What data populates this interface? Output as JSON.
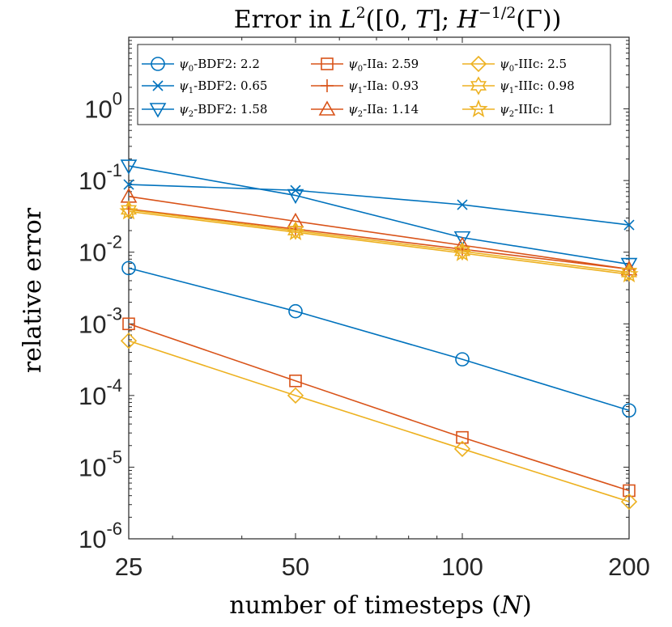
{
  "chart_data": {
    "type": "line",
    "title": "Error in L²([0,T]; H^{−1/2}(Γ))",
    "title_parts": {
      "pre": "Error in ",
      "L": "L",
      "sup2": "2",
      "args": "([0, ",
      "T": "T",
      "mid": "]; ",
      "H": "H",
      "supH": "−1/2",
      "gamma": "(Γ))"
    },
    "xlabel": "number of timesteps (N)",
    "xlabel_parts": {
      "pre": "number of timesteps (",
      "N": "N",
      "post": ")"
    },
    "ylabel": "relative error",
    "xscale": "log",
    "yscale": "log",
    "xlim": [
      25,
      200
    ],
    "ylim": [
      1e-06,
      10
    ],
    "x": [
      25,
      50,
      100,
      200
    ],
    "xtick_labels": [
      "25",
      "50",
      "100",
      "200"
    ],
    "ytick_labels": [
      {
        "base": "10",
        "exp": "-6",
        "value": 1e-06
      },
      {
        "base": "10",
        "exp": "-5",
        "value": 1e-05
      },
      {
        "base": "10",
        "exp": "-4",
        "value": 0.0001
      },
      {
        "base": "10",
        "exp": "-3",
        "value": 0.001
      },
      {
        "base": "10",
        "exp": "-2",
        "value": 0.01
      },
      {
        "base": "10",
        "exp": "-1",
        "value": 0.1
      },
      {
        "base": "10",
        "exp": "0",
        "value": 1
      }
    ],
    "legend_position": "top",
    "colors": {
      "blue": "#0072BD",
      "orange": "#D95319",
      "yellow": "#EDB120"
    },
    "series": [
      {
        "psi": "ψ",
        "sub": "0",
        "method": "-BDF2: ",
        "rate": "2.2",
        "color": "#0072BD",
        "marker": "circle",
        "values": [
          0.006,
          0.0015,
          0.00032,
          6.2e-05
        ]
      },
      {
        "psi": "ψ",
        "sub": "1",
        "method": "-BDF2: ",
        "rate": "0.65",
        "color": "#0072BD",
        "marker": "x",
        "values": [
          0.088,
          0.073,
          0.046,
          0.024
        ]
      },
      {
        "psi": "ψ",
        "sub": "2",
        "method": "-BDF2: ",
        "rate": "1.58",
        "color": "#0072BD",
        "marker": "triangle-down",
        "values": [
          0.16,
          0.062,
          0.016,
          0.0068
        ]
      },
      {
        "psi": "ψ",
        "sub": "0",
        "method": "-IIa: ",
        "rate": "2.59",
        "color": "#D95319",
        "marker": "square",
        "values": [
          0.001,
          0.00016,
          2.6e-05,
          4.7e-06
        ]
      },
      {
        "psi": "ψ",
        "sub": "1",
        "method": "-IIa: ",
        "rate": "0.93",
        "color": "#D95319",
        "marker": "plus",
        "values": [
          0.04,
          0.021,
          0.011,
          0.0058
        ]
      },
      {
        "psi": "ψ",
        "sub": "2",
        "method": "-IIa: ",
        "rate": "1.14",
        "color": "#D95319",
        "marker": "triangle-up",
        "values": [
          0.06,
          0.027,
          0.0125,
          0.0058
        ]
      },
      {
        "psi": "ψ",
        "sub": "0",
        "method": "-IIIc: ",
        "rate": "2.5",
        "color": "#EDB120",
        "marker": "diamond",
        "values": [
          0.00058,
          0.0001,
          1.8e-05,
          3.3e-06
        ]
      },
      {
        "psi": "ψ",
        "sub": "1",
        "method": "-IIIc: ",
        "rate": "0.98",
        "color": "#EDB120",
        "marker": "hexagram",
        "values": [
          0.039,
          0.02,
          0.0103,
          0.0052
        ]
      },
      {
        "psi": "ψ",
        "sub": "2",
        "method": "-IIIc: ",
        "rate": "1",
        "color": "#EDB120",
        "marker": "pentagram",
        "values": [
          0.037,
          0.019,
          0.0097,
          0.0049
        ]
      }
    ]
  }
}
